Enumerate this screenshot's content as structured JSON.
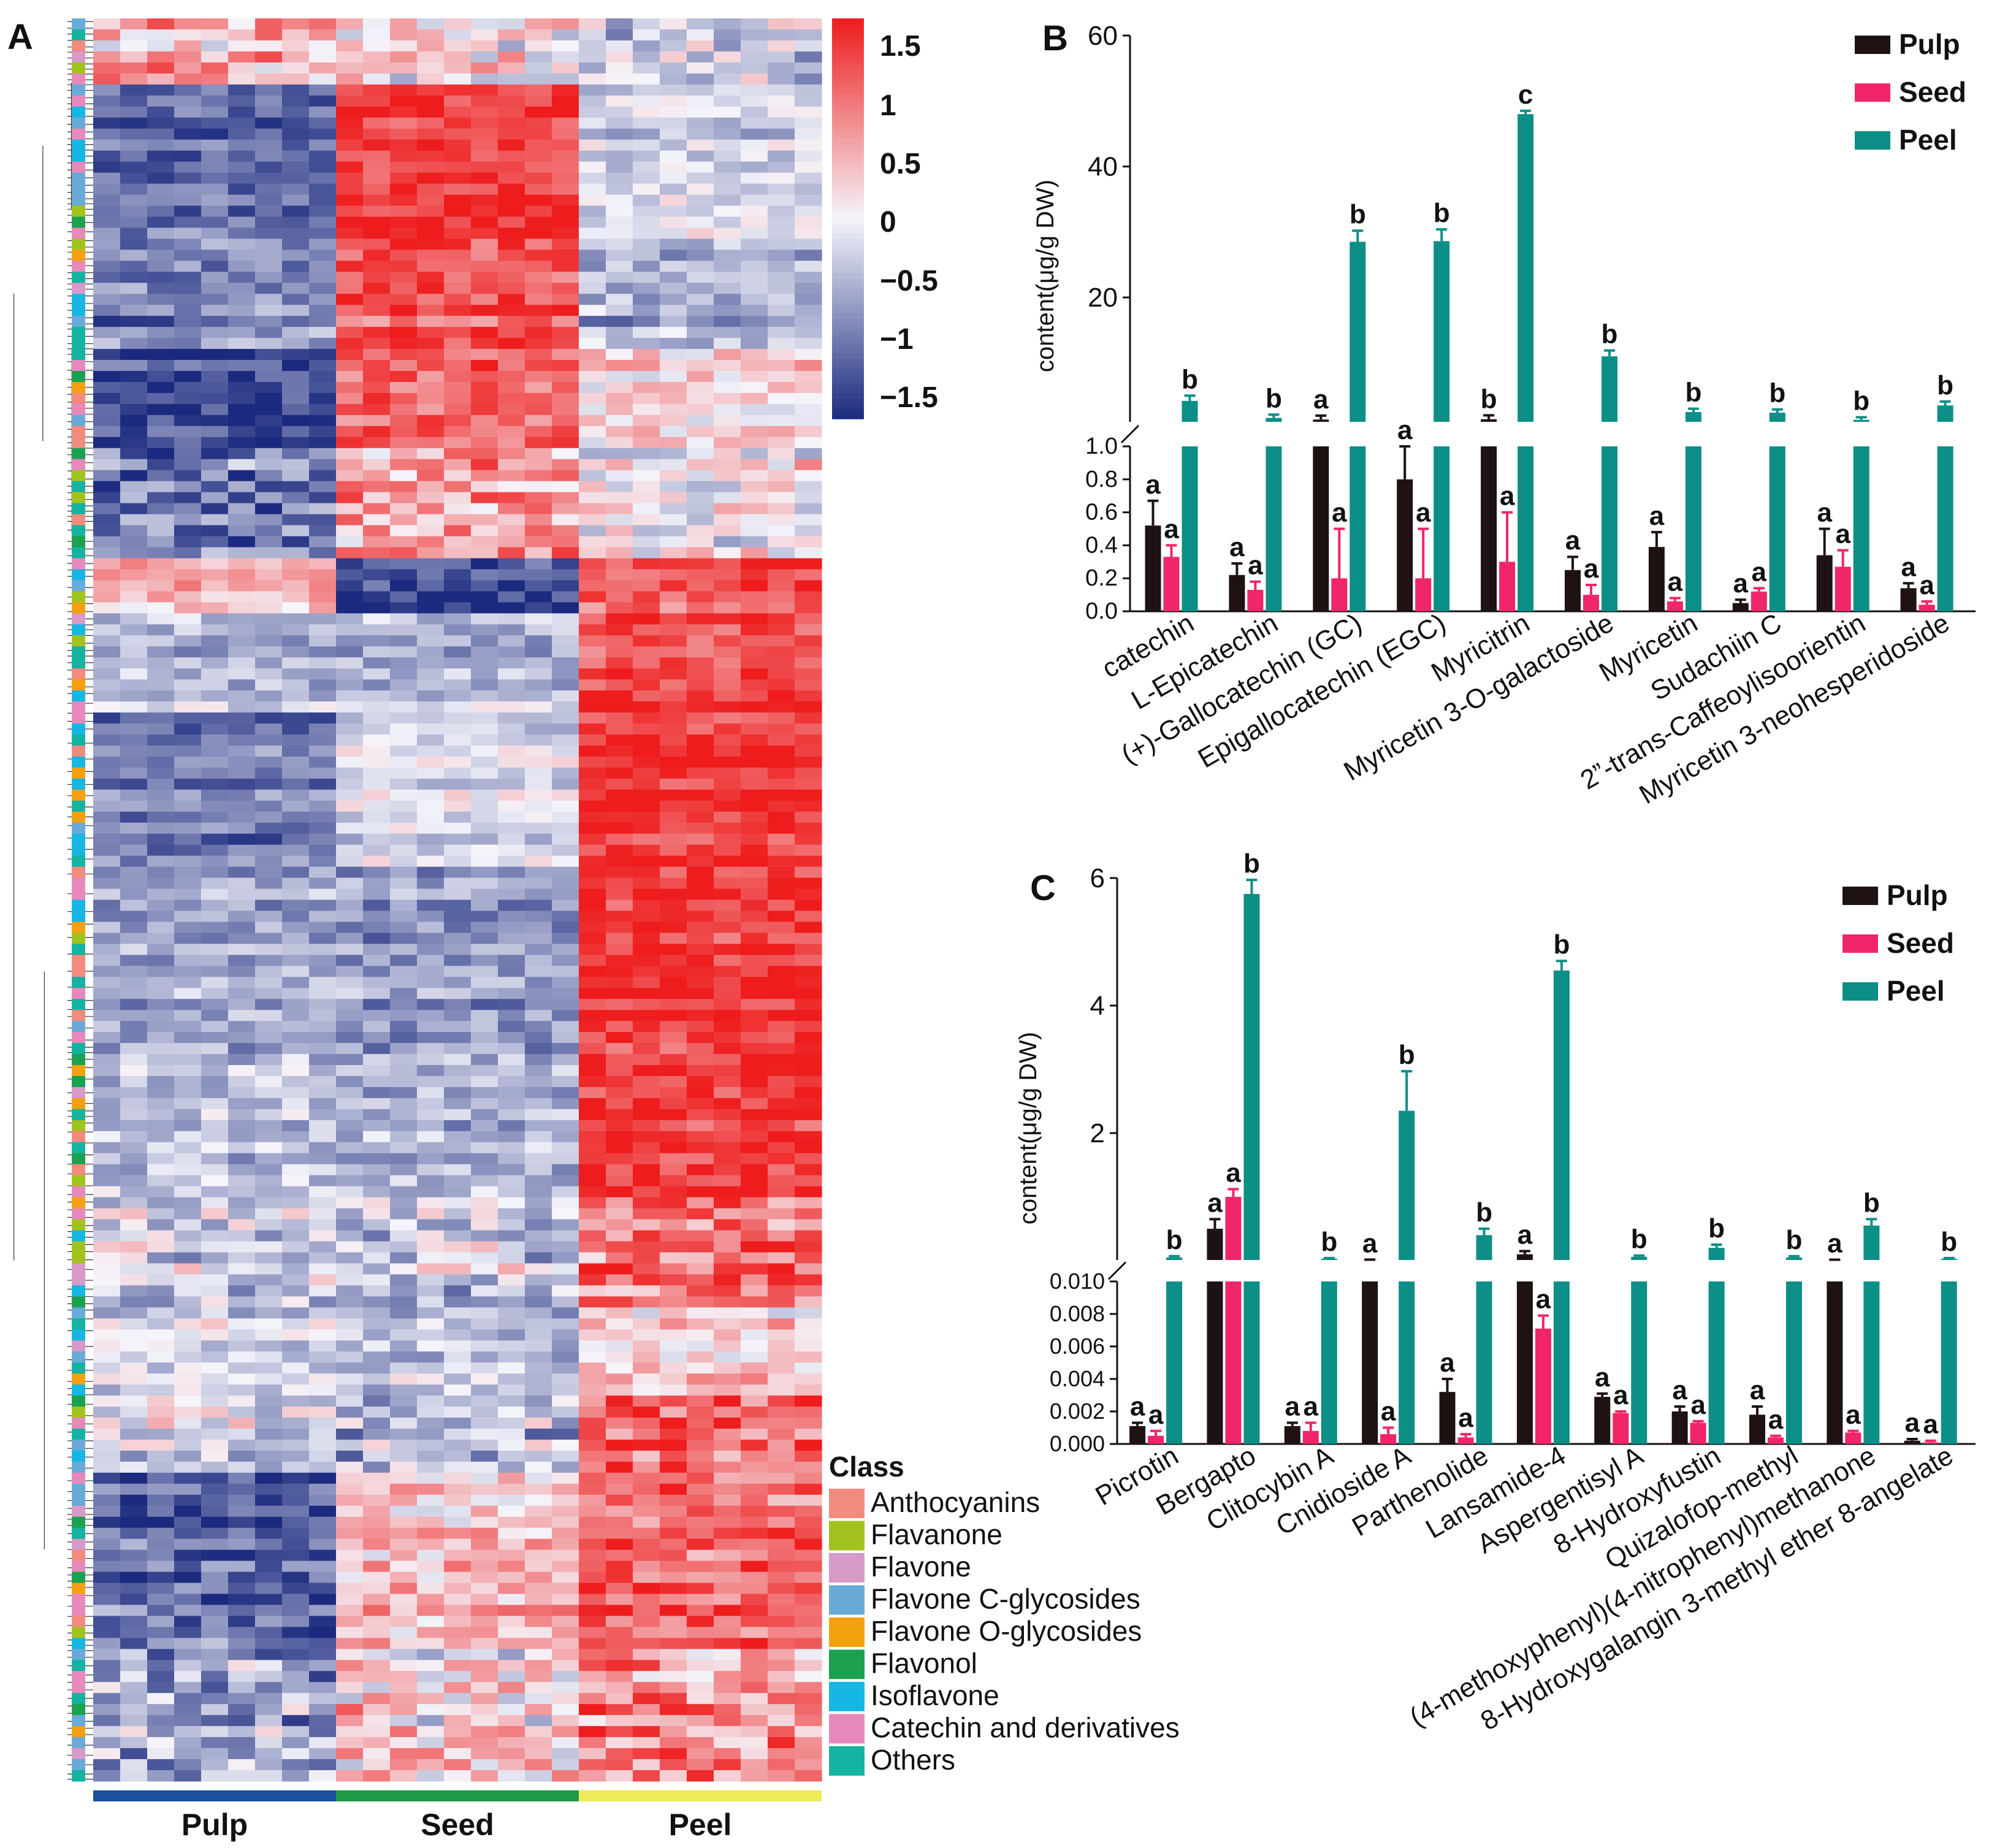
{
  "colors": {
    "pulp": "#1e1212",
    "seed": "#f0256a",
    "peel": "#0b8f86",
    "heat_low": "#1b2a7e",
    "heat_mid": "#f5f5fb",
    "heat_high": "#ee1c1c"
  },
  "chart_data": [
    {
      "panel": "A",
      "type": "heatmap",
      "panel_label": "A",
      "columns_per_group": 9,
      "groups": [
        {
          "name": "Pulp",
          "bar_color": "#1c4f9c"
        },
        {
          "name": "Seed",
          "bar_color": "#1e9a45"
        },
        {
          "name": "Peel",
          "bar_color": "#eeea5a"
        }
      ],
      "row_blocks": [
        {
          "rows": 6,
          "pulp": 0.4,
          "seed": 0.1,
          "peel": -0.3,
          "noise": 0.7
        },
        {
          "rows": 14,
          "pulp": -1.0,
          "seed": 1.3,
          "peel": -0.2,
          "noise": 0.35
        },
        {
          "rows": 10,
          "pulp": -0.8,
          "seed": 1.1,
          "peel": -0.5,
          "noise": 0.4
        },
        {
          "rows": 9,
          "pulp": -1.3,
          "seed": 1.0,
          "peel": 0.2,
          "noise": 0.45
        },
        {
          "rows": 10,
          "pulp": -0.9,
          "seed": 0.6,
          "peel": 0.1,
          "noise": 0.6
        },
        {
          "rows": 5,
          "pulp": 0.5,
          "seed": -1.3,
          "peel": 1.1,
          "noise": 0.4
        },
        {
          "rows": 9,
          "pulp": -0.4,
          "seed": -0.4,
          "peel": 1.2,
          "noise": 0.35
        },
        {
          "rows": 14,
          "pulp": -0.9,
          "seed": -0.2,
          "peel": 1.3,
          "noise": 0.3
        },
        {
          "rows": 16,
          "pulp": -0.6,
          "seed": -0.7,
          "peel": 1.3,
          "noise": 0.35
        },
        {
          "rows": 14,
          "pulp": -0.5,
          "seed": -0.6,
          "peel": 1.2,
          "noise": 0.4
        },
        {
          "rows": 10,
          "pulp": -0.2,
          "seed": -0.3,
          "peel": 0.9,
          "noise": 0.6
        },
        {
          "rows": 8,
          "pulp": -0.3,
          "seed": -0.4,
          "peel": 0.2,
          "noise": 0.4
        },
        {
          "rows": 7,
          "pulp": -0.2,
          "seed": -0.4,
          "peel": 1.0,
          "noise": 0.6
        },
        {
          "rows": 16,
          "pulp": -1.0,
          "seed": 0.4,
          "peel": 1.0,
          "noise": 0.45
        },
        {
          "rows": 12,
          "pulp": -0.6,
          "seed": 0.2,
          "peel": 0.7,
          "noise": 0.7
        }
      ],
      "colorbar": {
        "min": -1.5,
        "max": 1.5,
        "ticks": [
          "1.5",
          "1",
          "0.5",
          "0",
          "−0.5",
          "−1",
          "−1.5"
        ]
      },
      "class_legend_title": "Class",
      "classes": [
        {
          "name": "Anthocyanins",
          "color": "#f28a7e"
        },
        {
          "name": "Flavanone",
          "color": "#a2c21e"
        },
        {
          "name": "Flavone",
          "color": "#d79ac9"
        },
        {
          "name": "Flavone C-glycosides",
          "color": "#6aaad9"
        },
        {
          "name": "Flavone O-glycosides",
          "color": "#f3a10f"
        },
        {
          "name": "Flavonol",
          "color": "#1ca150"
        },
        {
          "name": "Isoflavone",
          "color": "#16b7e3"
        },
        {
          "name": "Catechin and derivatives",
          "color": "#e889bb"
        },
        {
          "name": "Others",
          "color": "#14b3a2"
        }
      ]
    },
    {
      "panel": "B",
      "type": "bar",
      "panel_label": "B",
      "ylabel": "content(μg/g DW)",
      "series_names": [
        "Pulp",
        "Seed",
        "Peel"
      ],
      "categories": [
        "catechin",
        "L-Epicatechin",
        "(+)-Gallocatechin (GC)",
        "Epigallocatechin (EGC)",
        "Myricitrin",
        "Myricetin 3-O-galactoside",
        "Myricetin",
        "Sudachiin C",
        "2”-trans-Caffeoylisoorientin",
        "Myricetin 3-neohesperidoside"
      ],
      "values": {
        "Pulp": [
          0.52,
          0.22,
          1.35,
          0.8,
          1.4,
          0.25,
          0.39,
          0.05,
          0.34,
          0.14
        ],
        "Seed": [
          0.33,
          0.13,
          0.2,
          0.2,
          0.3,
          0.1,
          0.06,
          0.12,
          0.27,
          0.04
        ],
        "Peel": [
          4.2,
          1.6,
          28.5,
          28.6,
          48.0,
          11.0,
          2.5,
          2.4,
          1.3,
          3.5
        ]
      },
      "errors": {
        "Pulp": [
          0.15,
          0.07,
          0.6,
          0.5,
          0.6,
          0.08,
          0.09,
          0.02,
          0.16,
          0.03
        ],
        "Seed": [
          0.07,
          0.05,
          0.3,
          0.3,
          0.3,
          0.06,
          0.02,
          0.02,
          0.1,
          0.02
        ],
        "Peel": [
          0.8,
          0.5,
          1.7,
          1.8,
          0.5,
          0.9,
          0.5,
          0.5,
          0.4,
          0.6
        ]
      },
      "letters": {
        "Pulp": [
          "a",
          "a",
          "a",
          "a",
          "b",
          "a",
          "a",
          "a",
          "a",
          "a"
        ],
        "Seed": [
          "a",
          "a",
          "a",
          "a",
          "a",
          "a",
          "a",
          "a",
          "a",
          "a"
        ],
        "Peel": [
          "b",
          "b",
          "b",
          "b",
          "c",
          "b",
          "b",
          "b",
          "b",
          "b"
        ]
      },
      "axis": {
        "break": 1.0,
        "lower_range": [
          0,
          1.0
        ],
        "lower_ticks": [
          "0.0",
          "0.2",
          "0.4",
          "0.6",
          "0.8",
          "1.0"
        ],
        "upper_range": [
          1.0,
          60
        ],
        "upper_ticks": [
          "20",
          "40",
          "60"
        ]
      }
    },
    {
      "panel": "C",
      "type": "bar",
      "panel_label": "C",
      "ylabel": "content(μg/g DW)",
      "series_names": [
        "Pulp",
        "Seed",
        "Peel"
      ],
      "categories": [
        "Picrotin",
        "Bergapto",
        "Clitocybin A",
        "Cnidioside A",
        "Parthenolide",
        "Lansamide-4",
        "Aspergentisyl A",
        "8-Hydroxyfustin",
        "Quizalofop-methyl",
        "(4-methoxyphenyl)(4-nitrophenyl)methanone",
        "8-Hydroxygalangin 3-methyl ether 8-angelate"
      ],
      "values": {
        "Pulp": [
          0.0011,
          0.5,
          0.0011,
          0.012,
          0.0032,
          0.1,
          0.0029,
          0.002,
          0.0018,
          0.011,
          0.0002
        ],
        "Seed": [
          0.0005,
          1.0,
          0.0008,
          0.0006,
          0.0004,
          0.0071,
          0.0019,
          0.0013,
          0.0004,
          0.0007,
          0.0001
        ],
        "Peel": [
          0.05,
          5.75,
          0.03,
          2.35,
          0.4,
          4.55,
          0.06,
          0.2,
          0.05,
          0.55,
          0.03
        ]
      },
      "errors": {
        "Pulp": [
          0.0002,
          0.15,
          0.0002,
          0.004,
          0.0008,
          0.05,
          0.0002,
          0.0003,
          0.0005,
          0.004,
          0.0001
        ],
        "Seed": [
          0.0003,
          0.12,
          0.0005,
          0.0004,
          0.0002,
          0.0008,
          0.0001,
          0.0001,
          0.0001,
          0.0001,
          0.0001
        ],
        "Peel": [
          0.02,
          0.22,
          0.01,
          0.62,
          0.1,
          0.15,
          0.02,
          0.05,
          0.02,
          0.1,
          0.01
        ]
      },
      "letters": {
        "Pulp": [
          "a",
          "a",
          "a",
          "a",
          "a",
          "a",
          "a",
          "a",
          "a",
          "a",
          "a"
        ],
        "Seed": [
          "a",
          "a",
          "a",
          "a",
          "a",
          "a",
          "a",
          "a",
          "a",
          "a",
          "a"
        ],
        "Peel": [
          "b",
          "b",
          "b",
          "b",
          "b",
          "b",
          "b",
          "b",
          "b",
          "b",
          "b"
        ]
      },
      "axis": {
        "break": 0.01,
        "lower_range": [
          0,
          0.01
        ],
        "lower_ticks": [
          "0.000",
          "0.002",
          "0.004",
          "0.006",
          "0.008",
          "0.010"
        ],
        "upper_range": [
          0.01,
          6
        ],
        "upper_ticks": [
          "2",
          "4",
          "6"
        ]
      }
    }
  ]
}
